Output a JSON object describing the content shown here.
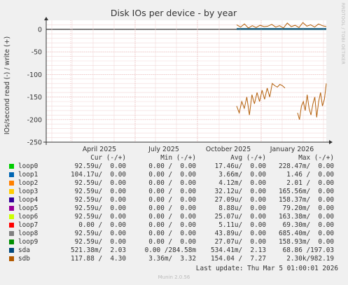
{
  "chart_data": {
    "type": "line",
    "title": "Disk IOs per device - by year",
    "ylabel": "IOs/second read (-) / write (+)",
    "xlabel": "",
    "ylim": [
      -250,
      20
    ],
    "yticks": [
      "0",
      "-50",
      "-100",
      "-150",
      "-200",
      "-250"
    ],
    "ytick_values": [
      0,
      -50,
      -100,
      -150,
      -200,
      -250
    ],
    "xticks": [
      "April 2025",
      "July 2025",
      "October 2025",
      "January 2026"
    ],
    "grid": true,
    "x_range_note": "approx. Feb 2025 - Mar 2026",
    "series": [
      {
        "name": "sda",
        "color": "#005a82",
        "write_values": [
          2,
          2,
          2,
          2,
          2,
          2,
          2,
          2,
          2,
          2,
          2,
          2,
          2,
          2,
          2,
          2,
          2,
          2,
          2,
          2
        ],
        "read_values": [
          -0.5,
          -0.5,
          -0.5,
          -0.5,
          -0.5,
          -0.5,
          -0.5,
          -0.5,
          -0.5,
          -0.5,
          -0.5,
          -0.5,
          -0.5,
          -0.5,
          -0.5,
          -0.5,
          -0.5,
          -0.5,
          -0.5,
          -0.5
        ]
      },
      {
        "name": "sdb",
        "color": "#b35f0a",
        "write_values": [
          10,
          5,
          12,
          3,
          8,
          4,
          9,
          6,
          7,
          11,
          5,
          8,
          3,
          14,
          6,
          9,
          4,
          15,
          7,
          10,
          5,
          12,
          8,
          6
        ],
        "read_values": [
          -170,
          -185,
          -160,
          -175,
          -150,
          -190,
          -145,
          -165,
          -140,
          -160,
          -135,
          -155,
          -130,
          -150,
          -120,
          -125,
          -128,
          -122,
          -125,
          -130,
          -185,
          -200,
          -170,
          -160,
          -180,
          -145,
          -175,
          -190,
          -165,
          -150,
          -195,
          -160,
          -140,
          -170,
          -155,
          -120
        ]
      }
    ]
  },
  "watermark": "RRDTOOL / TOBI OETIKER",
  "legend": {
    "headers": {
      "cur": "Cur (-/+)",
      "min": "Min (-/+)",
      "avg": "Avg (-/+)",
      "max": "Max (-/+)"
    },
    "rows": [
      {
        "name": "loop0",
        "color": "#00cc00",
        "cur": "92.59u/  0.00",
        "min": "0.00 /  0.00",
        "avg": "17.46u/  0.00",
        "max": "228.47m/  0.00"
      },
      {
        "name": "loop1",
        "color": "#0066b3",
        "cur": "104.17u/  0.00",
        "min": "0.00 /  0.00",
        "avg": "3.66m/  0.00",
        "max": "1.46 /  0.00"
      },
      {
        "name": "loop2",
        "color": "#ff8000",
        "cur": "92.59u/  0.00",
        "min": "0.00 /  0.00",
        "avg": "4.12m/  0.00",
        "max": "2.01 /  0.00"
      },
      {
        "name": "loop3",
        "color": "#ffcc00",
        "cur": "92.59u/  0.00",
        "min": "0.00 /  0.00",
        "avg": "32.12u/  0.00",
        "max": "165.56m/  0.00"
      },
      {
        "name": "loop4",
        "color": "#330099",
        "cur": "92.59u/  0.00",
        "min": "0.00 /  0.00",
        "avg": "27.09u/  0.00",
        "max": "158.37m/  0.00"
      },
      {
        "name": "loop5",
        "color": "#990099",
        "cur": "92.59u/  0.00",
        "min": "0.00 /  0.00",
        "avg": "8.88u/  0.00",
        "max": "79.20m/  0.00"
      },
      {
        "name": "loop6",
        "color": "#ccff00",
        "cur": "92.59u/  0.00",
        "min": "0.00 /  0.00",
        "avg": "25.07u/  0.00",
        "max": "163.38m/  0.00"
      },
      {
        "name": "loop7",
        "color": "#ff0000",
        "cur": "0.00 /  0.00",
        "min": "0.00 /  0.00",
        "avg": "5.11u/  0.00",
        "max": "69.30m/  0.00"
      },
      {
        "name": "loop8",
        "color": "#808080",
        "cur": "92.59u/  0.00",
        "min": "0.00 /  0.00",
        "avg": "43.89u/  0.00",
        "max": "685.40m/  0.00"
      },
      {
        "name": "loop9",
        "color": "#008f00",
        "cur": "92.59u/  0.00",
        "min": "0.00 /  0.00",
        "avg": "27.07u/  0.00",
        "max": "158.93m/  0.00"
      },
      {
        "name": "sda",
        "color": "#00487d",
        "cur": "521.38m/  2.03",
        "min": "0.00 /284.58m",
        "avg": "534.41m/  2.13",
        "max": "68.86 /197.03"
      },
      {
        "name": "sdb",
        "color": "#b35a00",
        "cur": "117.88 /  4.30",
        "min": "3.36m/  3.32",
        "avg": "154.04 /  7.27",
        "max": "2.30k/982.19"
      }
    ]
  },
  "footer": "Last update: Thu Mar  5 01:00:01 2026",
  "version": "Munin 2.0.56"
}
